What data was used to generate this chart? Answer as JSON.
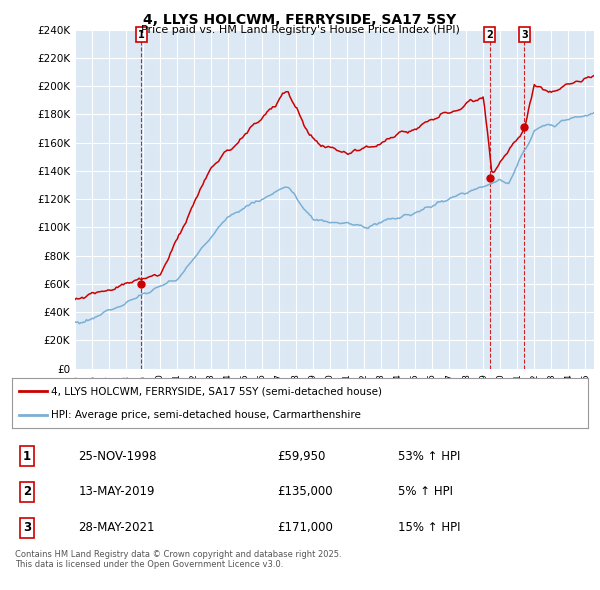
{
  "title": "4, LLYS HOLCWM, FERRYSIDE, SA17 5SY",
  "subtitle": "Price paid vs. HM Land Registry's House Price Index (HPI)",
  "ylim": [
    0,
    240000
  ],
  "yticks": [
    0,
    20000,
    40000,
    60000,
    80000,
    100000,
    120000,
    140000,
    160000,
    180000,
    200000,
    220000,
    240000
  ],
  "ytick_labels": [
    "£0",
    "£20K",
    "£40K",
    "£60K",
    "£80K",
    "£100K",
    "£120K",
    "£140K",
    "£160K",
    "£180K",
    "£200K",
    "£220K",
    "£240K"
  ],
  "red_line_color": "#cc0000",
  "blue_line_color": "#7bafd4",
  "plot_bg_color": "#dce9f5",
  "background_color": "#ffffff",
  "grid_color": "#ffffff",
  "transactions": [
    {
      "label": "1",
      "date_num": 1998.9,
      "price": 59950
    },
    {
      "label": "2",
      "date_num": 2019.37,
      "price": 135000
    },
    {
      "label": "3",
      "date_num": 2021.41,
      "price": 171000
    }
  ],
  "legend_entries": [
    "4, LLYS HOLCWM, FERRYSIDE, SA17 5SY (semi-detached house)",
    "HPI: Average price, semi-detached house, Carmarthenshire"
  ],
  "table_data": [
    [
      "1",
      "25-NOV-1998",
      "£59,950",
      "53% ↑ HPI"
    ],
    [
      "2",
      "13-MAY-2019",
      "£135,000",
      "5% ↑ HPI"
    ],
    [
      "3",
      "28-MAY-2021",
      "£171,000",
      "15% ↑ HPI"
    ]
  ],
  "footnote": "Contains HM Land Registry data © Crown copyright and database right 2025.\nThis data is licensed under the Open Government Licence v3.0.",
  "xlim_start": 1995.0,
  "xlim_end": 2025.5
}
